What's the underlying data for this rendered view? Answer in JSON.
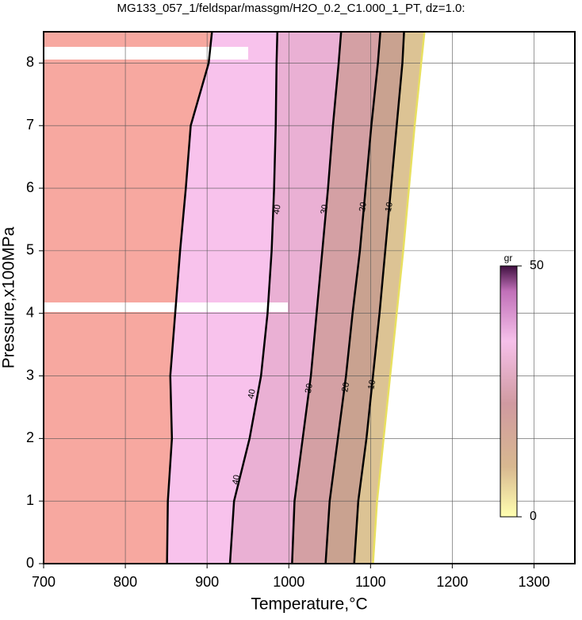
{
  "chart_data": {
    "type": "contour",
    "title": "MG133_057_1/feldspar/massgm/H2O_0.2_C1.000_1_PT, dz=1.0:",
    "xlabel": "Temperature,°C",
    "ylabel": "Pressure,x100MPa",
    "xlim": [
      700,
      1350
    ],
    "ylim": [
      0,
      8.5
    ],
    "xticks": [
      700,
      800,
      900,
      1000,
      1100,
      1200,
      1300
    ],
    "yticks": [
      0,
      1,
      2,
      3,
      4,
      5,
      6,
      7,
      8
    ],
    "grid": true,
    "outside_color": "#f7a39a",
    "contours": [
      {
        "level": 50,
        "fill": "#f7a8a0",
        "line_color": "#000000",
        "x": [
          851,
          852,
          857,
          855,
          861,
          867,
          874,
          880,
          902,
          906
        ],
        "y": [
          0,
          1,
          2,
          3,
          4,
          5,
          6,
          7,
          8,
          8.5
        ]
      },
      {
        "level": 40,
        "fill": "#f8c2ec",
        "line_color": "#000000",
        "x": [
          928,
          933,
          952,
          966,
          974,
          979,
          982,
          984,
          985,
          986
        ],
        "y": [
          0,
          1,
          2,
          3,
          4,
          5,
          6,
          7,
          8,
          8.5
        ],
        "label_points": {
          "x": [
            936,
            955,
            986
          ],
          "y": [
            1.34,
            2.71,
            5.66
          ]
        }
      },
      {
        "level": 30,
        "fill": "#eab0d4",
        "line_color": "#000000",
        "x": [
          1004,
          1007,
          1017,
          1027,
          1034,
          1041,
          1048,
          1054,
          1061,
          1064
        ],
        "y": [
          0,
          1,
          2,
          3,
          4,
          5,
          6,
          7,
          8,
          8.5
        ],
        "label_points": {
          "x": [
            1025,
            1044
          ],
          "y": [
            2.8,
            5.66
          ]
        }
      },
      {
        "level": 20,
        "fill": "#d4a0a4",
        "line_color": "#000000",
        "x": [
          1045,
          1050,
          1060,
          1070,
          1078,
          1087,
          1094,
          1101,
          1109,
          1112
        ],
        "y": [
          0,
          1,
          2,
          3,
          4,
          5,
          6,
          7,
          8,
          8.5
        ],
        "label_points": {
          "x": [
            1070,
            1091
          ],
          "y": [
            2.82,
            5.7
          ]
        }
      },
      {
        "level": 10,
        "fill": "#c9a290",
        "line_color": "#000000",
        "x": [
          1080,
          1085,
          1095,
          1103,
          1111,
          1118,
          1125,
          1132,
          1139,
          1141
        ],
        "y": [
          0,
          1,
          2,
          3,
          4,
          5,
          6,
          7,
          8,
          8.5
        ],
        "label_points": {
          "x": [
            1102,
            1123
          ],
          "y": [
            2.86,
            5.7
          ]
        }
      },
      {
        "level": 0,
        "fill": "#dcc394",
        "line_color": "#e8e060",
        "x": [
          1103,
          1108,
          1116,
          1124,
          1132,
          1140,
          1147,
          1154,
          1162,
          1166
        ],
        "y": [
          0,
          1,
          2,
          3,
          4,
          5,
          6,
          7,
          8,
          8.5
        ]
      }
    ],
    "colorbar": {
      "label": "gr",
      "lim": [
        0,
        50
      ],
      "ticks": [
        0,
        50
      ]
    }
  }
}
